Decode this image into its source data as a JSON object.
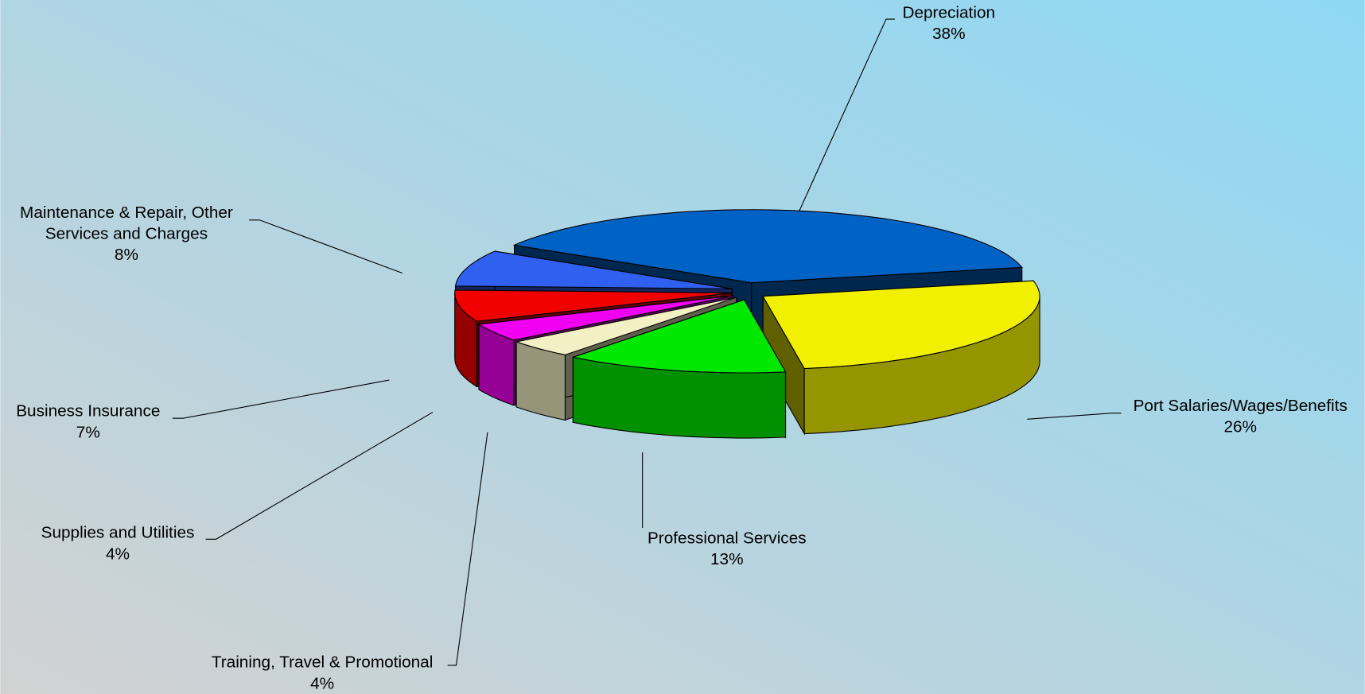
{
  "chart_data": {
    "type": "pie3d",
    "categories": [
      "Depreciation",
      "Port Salaries/Wages/Benefits",
      "Professional Services",
      "Training, Travel & Promotional",
      "Supplies and Utilities",
      "Business Insurance",
      "Maintenance & Repair, Other Services and Charges"
    ],
    "values": [
      38,
      26,
      13,
      4,
      4,
      7,
      8
    ],
    "value_labels": [
      "38%",
      "26%",
      "13%",
      "4%",
      "4%",
      "7%",
      "8%"
    ],
    "colors": [
      "#0062c4",
      "#f0f000",
      "#00e800",
      "#f2f0c4",
      "#f000f0",
      "#f00000",
      "#3060f0"
    ]
  }
}
